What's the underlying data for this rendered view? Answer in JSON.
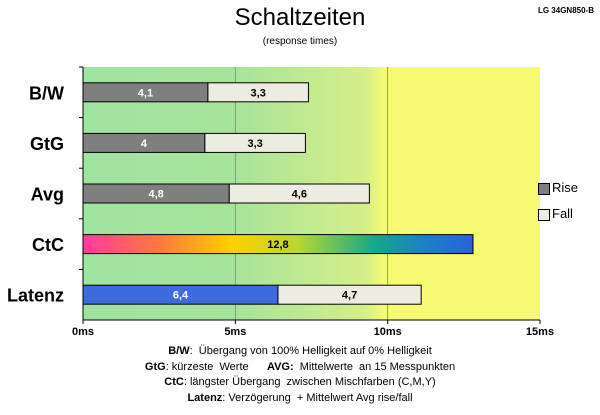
{
  "title": "Schaltzeiten",
  "subtitle": "(response times)",
  "model": "LG 34GN850-B",
  "chart_data": {
    "type": "bar",
    "orientation": "horizontal-stacked",
    "categories": [
      "B/W",
      "GtG",
      "Avg",
      "CtC",
      "Latenz"
    ],
    "series": [
      {
        "name": "Rise",
        "values": [
          4.1,
          4.0,
          4.8,
          12.8,
          6.4
        ],
        "labels": [
          "4,1",
          "4",
          "4,8",
          "12,8",
          "6,4"
        ]
      },
      {
        "name": "Fall",
        "values": [
          3.3,
          3.3,
          4.6,
          null,
          4.7
        ],
        "labels": [
          "3,3",
          "3,3",
          "4,6",
          "",
          "4,7"
        ]
      }
    ],
    "xlim": [
      0,
      15
    ],
    "xticks": [
      "0ms",
      "5ms",
      "10ms",
      "15ms"
    ],
    "legend": {
      "position": "right",
      "items": [
        "Rise",
        "Fall"
      ]
    },
    "colors": {
      "rise": "#7f7f7f",
      "fall": "#eeece1",
      "latenz": "#3e6ae0",
      "zone_green": "#9fe3a0",
      "zone_yellow": "#f6fb72"
    }
  },
  "footnotes": [
    {
      "bold": "B/W",
      "text": ":  Übergang von 100% Helligkeit auf 0% Helligkeit"
    },
    {
      "bold": "GtG",
      "text": ": kürzeste  Werte      ",
      "bold2": "AVG:",
      "text2": "  Mittelwerte  an 15 Messpunkten"
    },
    {
      "bold": "CtC",
      "text": ": längster Übergang  zwischen Mischfarben (C,M,Y)"
    },
    {
      "bold": "Latenz",
      "text": ": Verzögerung  + Mittelwert Avg rise/fall"
    }
  ]
}
